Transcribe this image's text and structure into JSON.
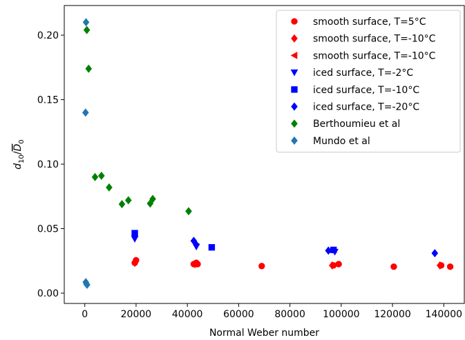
{
  "chart_data": {
    "type": "scatter",
    "title": "",
    "xlabel": "Normal Weber number",
    "ylabel": "d10/D0",
    "xlim": [
      -8000,
      148000
    ],
    "ylim": [
      -0.008,
      0.223
    ],
    "xticks": [
      0,
      20000,
      40000,
      60000,
      80000,
      100000,
      120000,
      140000
    ],
    "yticks": [
      0.0,
      0.05,
      0.1,
      0.15,
      0.2
    ],
    "xtick_labels": [
      "0",
      "20000",
      "40000",
      "60000",
      "80000",
      "100000",
      "120000",
      "140000"
    ],
    "ytick_labels": [
      "0.00",
      "0.05",
      "0.10",
      "0.15",
      "0.20"
    ],
    "grid": false,
    "legend_position": "top-right",
    "series": [
      {
        "name": "smooth surface, T=5°C",
        "marker": "circle",
        "color": "#ff0000",
        "points": [
          [
            19500,
            0.0235
          ],
          [
            20000,
            0.0255
          ],
          [
            42500,
            0.0225
          ],
          [
            43500,
            0.0235
          ],
          [
            44000,
            0.0225
          ],
          [
            69000,
            0.021
          ],
          [
            97000,
            0.0215
          ],
          [
            99000,
            0.0225
          ],
          [
            120500,
            0.0205
          ],
          [
            139000,
            0.0215
          ],
          [
            142500,
            0.0205
          ]
        ]
      },
      {
        "name": "smooth surface, T=-10°C",
        "marker": "diamond",
        "color": "#ff0000",
        "points": [
          [
            19500,
            0.0235
          ],
          [
            43000,
            0.0225
          ],
          [
            96500,
            0.0215
          ],
          [
            138500,
            0.0215
          ]
        ]
      },
      {
        "name": "smooth surface, T=-10°C",
        "marker": "triangle-left",
        "color": "#ff0000",
        "points": []
      },
      {
        "name": "iced surface, T=-2°C",
        "marker": "triangle-down",
        "color": "#0000ff",
        "points": [
          [
            19500,
            0.042
          ],
          [
            43500,
            0.036
          ],
          [
            97500,
            0.032
          ]
        ]
      },
      {
        "name": "iced surface, T=-10°C",
        "marker": "square",
        "color": "#0000ff",
        "points": [
          [
            19500,
            0.0465
          ],
          [
            49500,
            0.0355
          ],
          [
            97000,
            0.0335
          ]
        ]
      },
      {
        "name": "iced surface, T=-20°C",
        "marker": "diamond",
        "color": "#0000ff",
        "points": [
          [
            42500,
            0.0405
          ],
          [
            43500,
            0.0375
          ],
          [
            95000,
            0.033
          ],
          [
            136500,
            0.031
          ]
        ]
      },
      {
        "name": "Berthoumieu et al",
        "marker": "diamond",
        "color": "#008000",
        "points": [
          [
            800,
            0.204
          ],
          [
            1500,
            0.174
          ],
          [
            4000,
            0.09
          ],
          [
            6500,
            0.091
          ],
          [
            9500,
            0.082
          ],
          [
            14500,
            0.069
          ],
          [
            17000,
            0.072
          ],
          [
            25500,
            0.0695
          ],
          [
            26500,
            0.073
          ],
          [
            40500,
            0.0635
          ]
        ]
      },
      {
        "name": "Mundo et al",
        "marker": "diamond",
        "color": "#1f77b4",
        "points": [
          [
            500,
            0.21
          ],
          [
            300,
            0.14
          ],
          [
            400,
            0.0085
          ],
          [
            700,
            0.007
          ],
          [
            900,
            0.0065
          ]
        ]
      }
    ]
  }
}
